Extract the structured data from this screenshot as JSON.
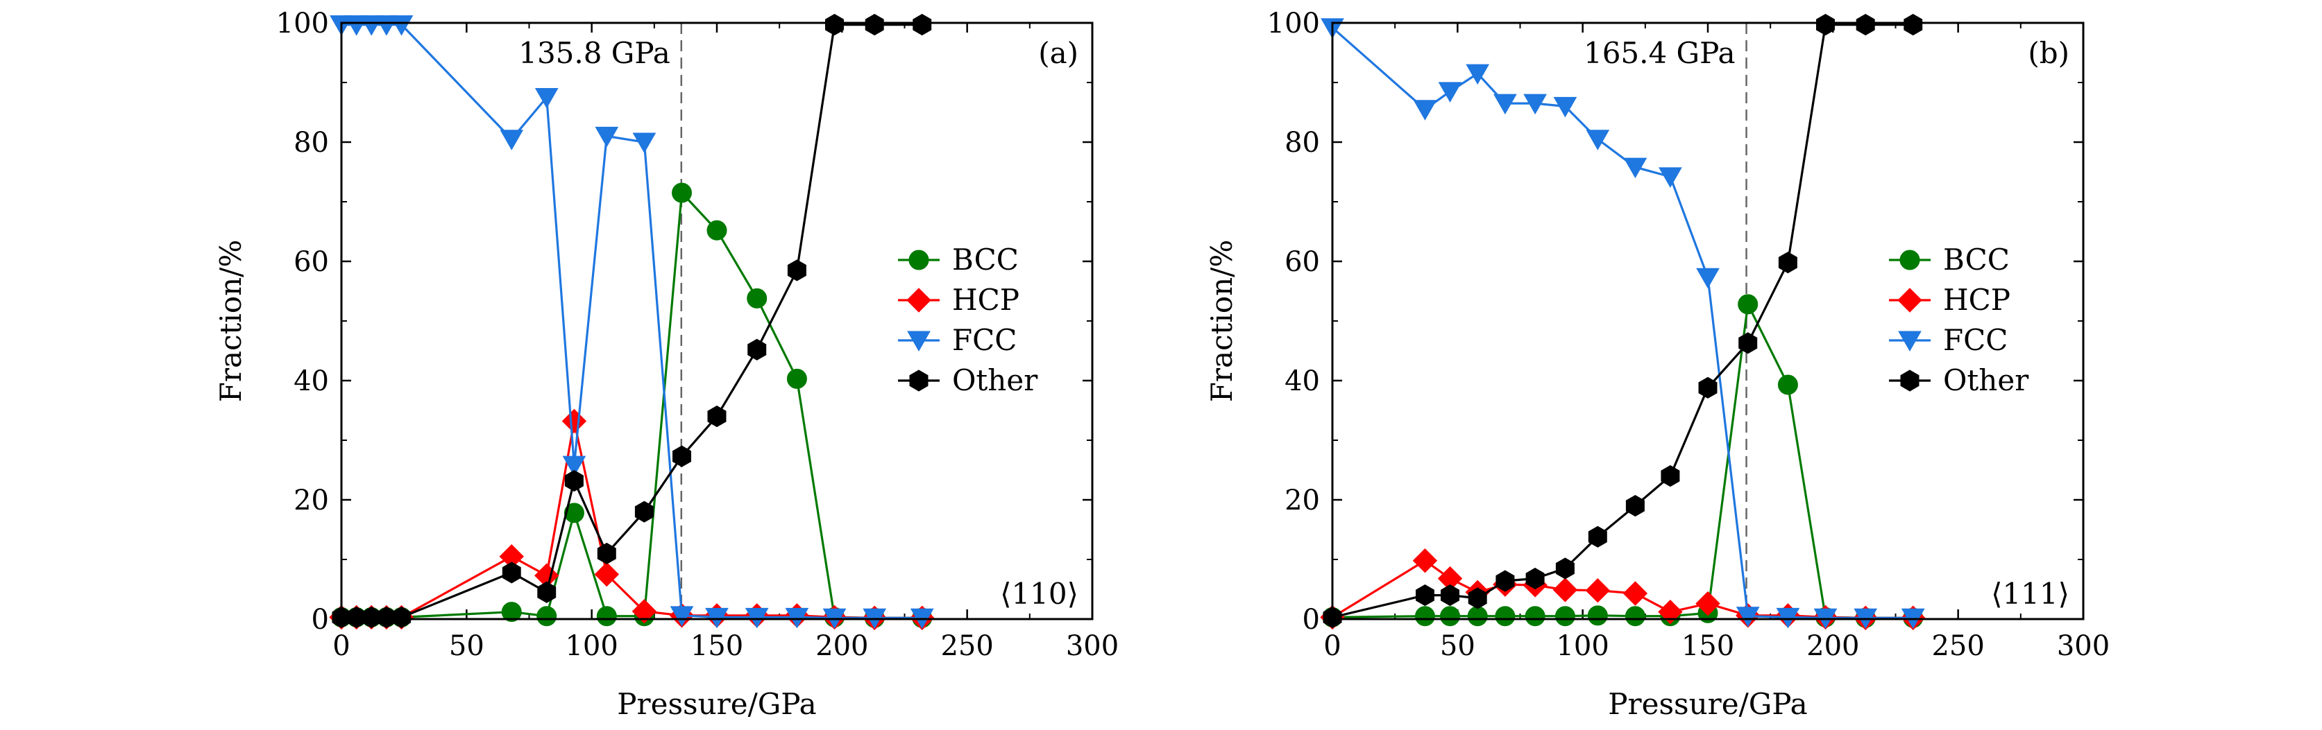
{
  "chart_data": [
    {
      "type": "line",
      "panel_label": "(a)",
      "orientation_label": "⟨110⟩",
      "annotation": "135.8 GPa",
      "annotation_x": 135.8,
      "xlabel": "Pressure/GPa",
      "ylabel": "Fraction/%",
      "xlim": [
        0,
        300
      ],
      "ylim": [
        0,
        100
      ],
      "xticks": [
        0,
        50,
        100,
        150,
        200,
        250,
        300
      ],
      "yticks": [
        0,
        20,
        40,
        60,
        80,
        100
      ],
      "legend_position": "right-middle",
      "series": [
        {
          "name": "BCC",
          "color": "#007a00",
          "marker": "circle",
          "x": [
            0,
            6,
            12,
            18,
            24,
            68,
            82,
            93,
            106,
            121,
            136,
            150,
            166,
            182,
            197,
            213,
            232
          ],
          "y": [
            0.3,
            0.3,
            0.3,
            0.3,
            0.3,
            1.2,
            0.5,
            17.8,
            0.5,
            0.5,
            71.5,
            65.2,
            53.8,
            40.3,
            0.3,
            0.2,
            0.2
          ]
        },
        {
          "name": "HCP",
          "color": "#ff0000",
          "marker": "diamond",
          "x": [
            0,
            6,
            12,
            18,
            24,
            68,
            82,
            93,
            106,
            121,
            136,
            150,
            166,
            182,
            197,
            213,
            232
          ],
          "y": [
            0.3,
            0.3,
            0.3,
            0.3,
            0.3,
            10.5,
            7.3,
            33.2,
            7.5,
            1.3,
            0.6,
            0.6,
            0.6,
            0.6,
            0.3,
            0.2,
            0.2
          ]
        },
        {
          "name": "FCC",
          "color": "#1f77e0",
          "marker": "triangle-down",
          "x": [
            0,
            6,
            12,
            18,
            24,
            68,
            82,
            93,
            106,
            121,
            136,
            150,
            166,
            182,
            197,
            213,
            232
          ],
          "y": [
            99.7,
            99.7,
            99.7,
            99.7,
            99.7,
            80.5,
            87.5,
            25.8,
            81,
            80,
            0.6,
            0.3,
            0.3,
            0.3,
            0.2,
            0.2,
            0.2
          ]
        },
        {
          "name": "Other",
          "color": "#000000",
          "marker": "hexagon",
          "x": [
            0,
            6,
            12,
            18,
            24,
            68,
            82,
            93,
            106,
            121,
            136,
            150,
            166,
            182,
            197,
            213,
            232
          ],
          "y": [
            0.3,
            0.3,
            0.3,
            0.3,
            0.3,
            7.8,
            4.5,
            23.2,
            11,
            18,
            27.3,
            34,
            45.2,
            58.5,
            99.7,
            99.7,
            99.7
          ]
        }
      ]
    },
    {
      "type": "line",
      "panel_label": "(b)",
      "orientation_label": "⟨111⟩",
      "annotation": "165.4 GPa",
      "annotation_x": 165.4,
      "xlabel": "Pressure/GPa",
      "ylabel": "Fraction/%",
      "xlim": [
        0,
        300
      ],
      "ylim": [
        0,
        100
      ],
      "xticks": [
        0,
        50,
        100,
        150,
        200,
        250,
        300
      ],
      "yticks": [
        0,
        20,
        40,
        60,
        80,
        100
      ],
      "legend_position": "right-middle",
      "series": [
        {
          "name": "BCC",
          "color": "#007a00",
          "marker": "circle",
          "x": [
            0,
            37,
            47,
            58,
            69,
            81,
            93,
            106,
            121,
            135,
            150,
            166,
            182,
            197,
            213,
            232
          ],
          "y": [
            0.3,
            0.5,
            0.5,
            0.5,
            0.5,
            0.5,
            0.5,
            0.6,
            0.5,
            0.5,
            1.0,
            52.8,
            39.3,
            0.3,
            0.2,
            0.2
          ]
        },
        {
          "name": "HCP",
          "color": "#ff0000",
          "marker": "diamond",
          "x": [
            0,
            37,
            47,
            58,
            69,
            81,
            93,
            106,
            121,
            135,
            150,
            166,
            182,
            197,
            213,
            232
          ],
          "y": [
            0.3,
            9.8,
            6.8,
            4.5,
            5.8,
            5.7,
            4.9,
            4.8,
            4.3,
            1.2,
            2.6,
            0.6,
            0.6,
            0.3,
            0.2,
            0.2
          ]
        },
        {
          "name": "FCC",
          "color": "#1f77e0",
          "marker": "triangle-down",
          "x": [
            0,
            37,
            47,
            58,
            69,
            81,
            93,
            106,
            121,
            135,
            150,
            166,
            182,
            197,
            213,
            232
          ],
          "y": [
            99.2,
            85.5,
            88.5,
            91.5,
            86.5,
            86.5,
            86,
            80.5,
            75.8,
            74.2,
            57.3,
            0.5,
            0.3,
            0.2,
            0.2,
            0.2
          ]
        },
        {
          "name": "Other",
          "color": "#000000",
          "marker": "hexagon",
          "x": [
            0,
            37,
            47,
            58,
            69,
            81,
            93,
            106,
            121,
            135,
            150,
            166,
            182,
            197,
            213,
            232
          ],
          "y": [
            0.3,
            4.0,
            4.0,
            3.5,
            6.4,
            6.8,
            8.5,
            13.8,
            19,
            24,
            38.8,
            46.3,
            59.8,
            99.7,
            99.7,
            99.7
          ]
        }
      ]
    }
  ]
}
